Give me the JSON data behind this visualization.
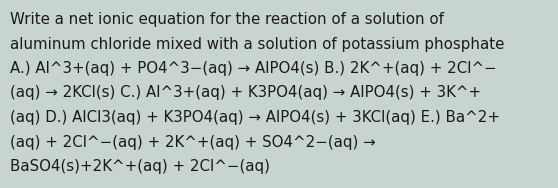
{
  "background_color": "#c8d4d0",
  "text_color": "#1a1a1a",
  "font_size": 10.8,
  "lines": [
    "Write a net ionic equation for the reaction of a solution of",
    "aluminum chloride mixed with a solution of potassium phosphate",
    "A.) Al^3+(aq) + PO4^3−(aq) → AlPO4(s) B.) 2K^+(aq) + 2Cl^−",
    "(aq) → 2KCl(s) C.) Al^3+(aq) + K3PO4(aq) → AlPO4(s) + 3K^+",
    "(aq) D.) AlCl3(aq) + K3PO4(aq) → AlPO4(s) + 3KCl(aq) E.) Ba^2+",
    "(aq) + 2Cl^−(aq) + 2K^+(aq) + SO4^2−(aq) →",
    "BaSO4(s)+2K^+(aq) + 2Cl^−(aq)"
  ],
  "figwidth": 5.58,
  "figheight": 1.88,
  "dpi": 100
}
